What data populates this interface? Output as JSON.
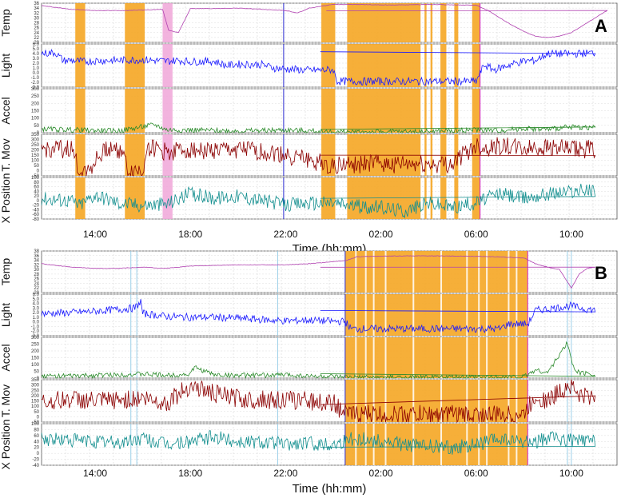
{
  "chart_data": [
    {
      "panel": "A",
      "type": "line",
      "x_ticks": [
        "14:00",
        "18:00",
        "22:00",
        "02:00",
        "06:00",
        "10:00"
      ],
      "xlabel": "Time (hh:mm)",
      "grid": true,
      "highlight_color": "#f5a623",
      "pink_color": "#f0a6d8",
      "shaded_orange": [
        [
          "13:10",
          "13:35"
        ],
        [
          "15:15",
          "16:05"
        ],
        [
          "23:30",
          "00:05"
        ],
        [
          "00:35",
          "03:40"
        ],
        [
          "03:50",
          "03:55"
        ],
        [
          "04:05",
          "04:10"
        ],
        [
          "04:30",
          "04:45"
        ],
        [
          "05:05",
          "05:15"
        ],
        [
          "05:50",
          "06:10"
        ]
      ],
      "shaded_pink": [
        [
          "16:50",
          "17:15"
        ]
      ],
      "vlines_blue": [
        "21:55"
      ],
      "vlines_magenta": [
        "06:10"
      ],
      "series": [
        {
          "name": "Temp",
          "color": "#b040b0",
          "ylim": [
            20,
            36
          ],
          "yticks": [
            "36",
            "34",
            "32",
            "30",
            "28",
            "26",
            "24",
            "22",
            "20"
          ],
          "x": [
            "11:45",
            "13:00",
            "14:00",
            "15:00",
            "16:00",
            "16:50",
            "17:05",
            "17:30",
            "18:00",
            "19:00",
            "20:00",
            "21:00",
            "22:00",
            "22:30",
            "23:00",
            "00:00",
            "01:00",
            "02:00",
            "03:00",
            "04:00",
            "05:00",
            "06:00",
            "06:30",
            "07:00",
            "07:30",
            "08:00",
            "08:30",
            "09:00",
            "09:30",
            "10:00",
            "10:30",
            "11:00",
            "11:30",
            "11:55"
          ],
          "y": [
            35,
            33.5,
            33,
            33,
            33.2,
            33.5,
            25,
            24,
            33.8,
            33.8,
            34,
            33.5,
            33,
            32,
            34,
            35.5,
            35.5,
            35.3,
            35.3,
            35.5,
            35.3,
            35.2,
            33,
            30,
            27,
            24.5,
            22.5,
            22,
            22.5,
            24,
            27,
            30,
            33,
            33
          ]
        },
        {
          "name": "Light",
          "color": "#1a1aff",
          "ylim": [
            -3,
            6
          ],
          "yticks": [
            "6.0",
            "5.0",
            "4.0",
            "3.0",
            "2.0",
            "1.0",
            "0.0",
            "-1.0",
            "-2.0",
            "-3.0"
          ],
          "x": [
            "11:45",
            "12:20",
            "12:40",
            "13:00",
            "13:30",
            "14:00",
            "15:00",
            "16:00",
            "17:00",
            "17:30",
            "18:00",
            "19:00",
            "19:30",
            "20:00",
            "21:00",
            "21:30",
            "22:00",
            "23:00",
            "00:00",
            "00:10",
            "01:00",
            "02:00",
            "03:00",
            "03:30",
            "04:00",
            "05:00",
            "06:00",
            "06:20",
            "06:45",
            "07:30",
            "08:00",
            "08:30",
            "09:00",
            "10:00",
            "11:00",
            "11:55"
          ],
          "y": [
            4,
            4.2,
            2.5,
            2.6,
            2.3,
            2.5,
            2.6,
            2.7,
            2.4,
            2.6,
            2.3,
            2.4,
            1.5,
            1.8,
            1.7,
            1,
            0.8,
            0.5,
            0.6,
            -1.8,
            -1.8,
            -1.8,
            -1.8,
            -1.8,
            -1.8,
            -1.8,
            -1.8,
            1.6,
            0.6,
            1.8,
            2.4,
            2.6,
            4,
            3.9,
            4.2,
            4.3
          ]
        },
        {
          "name": "Accel",
          "color": "#2a8a2a",
          "ylim": [
            0,
            300
          ],
          "yticks": [
            "300",
            "250",
            "200",
            "150",
            "100",
            "50",
            "0"
          ],
          "x": [
            "11:45",
            "13:00",
            "14:00",
            "15:00",
            "16:30",
            "17:00",
            "18:00",
            "20:00",
            "22:00",
            "00:00",
            "02:00",
            "04:00",
            "06:00",
            "07:00",
            "08:00",
            "09:00",
            "10:00",
            "11:00",
            "11:55"
          ],
          "y": [
            25,
            20,
            15,
            12,
            55,
            20,
            18,
            12,
            18,
            5,
            5,
            8,
            20,
            15,
            30,
            22,
            40,
            35,
            30
          ]
        },
        {
          "name": "T. Mov",
          "color": "#8b0000",
          "ylim": [
            -50,
            350
          ],
          "yticks": [
            "350",
            "300",
            "250",
            "200",
            "150",
            "100",
            "50",
            "0",
            "-50"
          ],
          "x": [
            "11:45",
            "13:00",
            "13:20",
            "13:40",
            "14:30",
            "15:10",
            "15:20",
            "16:00",
            "16:10",
            "17:00",
            "18:00",
            "19:00",
            "20:00",
            "21:00",
            "22:00",
            "23:00",
            "00:00",
            "01:00",
            "02:00",
            "03:00",
            "04:00",
            "05:00",
            "06:00",
            "06:20",
            "07:00",
            "08:00",
            "09:00",
            "10:00",
            "11:00",
            "11:55"
          ],
          "y": [
            200,
            210,
            0,
            0,
            220,
            200,
            0,
            0,
            230,
            180,
            210,
            190,
            200,
            180,
            150,
            100,
            50,
            60,
            70,
            60,
            60,
            70,
            250,
            220,
            240,
            210,
            230,
            200,
            210,
            220
          ]
        },
        {
          "name": "X Position",
          "color": "#138f8f",
          "ylim": [
            -80,
            100
          ],
          "yticks": [
            "100",
            "80",
            "60",
            "40",
            "20",
            "0",
            "-20",
            "-40",
            "-60",
            "-80"
          ],
          "x": [
            "11:45",
            "13:00",
            "13:20",
            "14:00",
            "15:00",
            "16:00",
            "17:00",
            "18:00",
            "19:00",
            "20:00",
            "21:00",
            "22:00",
            "23:00",
            "00:00",
            "01:00",
            "02:00",
            "03:00",
            "04:00",
            "05:00",
            "06:00",
            "07:00",
            "08:00",
            "09:00",
            "10:00",
            "11:00",
            "11:55"
          ],
          "y": [
            10,
            0,
            -20,
            25,
            -10,
            -20,
            -15,
            30,
            10,
            20,
            0,
            -20,
            -10,
            -10,
            -25,
            -30,
            -45,
            -10,
            -30,
            -10,
            30,
            10,
            30,
            40,
            45,
            30
          ]
        }
      ]
    },
    {
      "panel": "B",
      "type": "line",
      "x_ticks": [
        "14:00",
        "18:00",
        "22:00",
        "02:00",
        "06:00",
        "10:00"
      ],
      "xlabel": "Time (hh:mm)",
      "grid": true,
      "highlight_color": "#f5a623",
      "shaded_orange": [
        [
          "00:30",
          "08:10"
        ]
      ],
      "white_gaps": [
        "00:55",
        "01:20",
        "01:40",
        "02:10",
        "03:20",
        "04:30",
        "05:35",
        "06:05",
        "06:25",
        "07:20",
        "07:40"
      ],
      "vlines_lightblue": [
        "15:30",
        "15:45",
        "21:40",
        "09:50",
        "10:00"
      ],
      "vlines_blue": [
        "00:30"
      ],
      "vlines_magenta": [
        "08:10"
      ],
      "series": [
        {
          "name": "Temp",
          "color": "#b040b0",
          "ylim": [
            20,
            38
          ],
          "yticks": [
            "38",
            "36",
            "34",
            "32",
            "30",
            "28",
            "26",
            "24",
            "22",
            "20"
          ],
          "x": [
            "11:45",
            "13:00",
            "14:00",
            "15:00",
            "16:00",
            "17:00",
            "18:00",
            "20:00",
            "22:00",
            "23:00",
            "00:30",
            "01:00",
            "02:00",
            "04:00",
            "06:00",
            "07:00",
            "08:00",
            "08:30",
            "09:00",
            "09:30",
            "10:00",
            "10:20",
            "10:40",
            "11:00",
            "11:55"
          ],
          "y": [
            32.5,
            31,
            30.5,
            30.5,
            31,
            30.5,
            31.5,
            32,
            32,
            32.5,
            33.8,
            35.5,
            35.8,
            35.9,
            35.7,
            35.4,
            35,
            32.5,
            31,
            30,
            22,
            28,
            30.5,
            31,
            31
          ]
        },
        {
          "name": "Light",
          "color": "#1a1aff",
          "ylim": [
            -3,
            6
          ],
          "yticks": [
            "6.0",
            "5.0",
            "4.0",
            "3.0",
            "2.0",
            "1.0",
            "0.0",
            "-1.0",
            "-2.0",
            "-3.0"
          ],
          "x": [
            "11:45",
            "13:00",
            "14:00",
            "15:00",
            "15:40",
            "15:55",
            "16:00",
            "17:00",
            "18:00",
            "19:00",
            "20:00",
            "21:00",
            "22:00",
            "23:00",
            "00:00",
            "00:30",
            "00:45",
            "02:00",
            "04:00",
            "06:00",
            "07:00",
            "07:20",
            "07:40",
            "08:10",
            "08:30",
            "09:00",
            "10:00",
            "10:20",
            "11:00",
            "11:55"
          ],
          "y": [
            1.8,
            2,
            2.3,
            2.7,
            3,
            4.4,
            1.8,
            1.2,
            1,
            1,
            0.8,
            0.5,
            0.2,
            0.4,
            0.1,
            0.1,
            -1.5,
            -1.5,
            -1.5,
            -1.5,
            -1.5,
            -0.5,
            -0.4,
            -0.5,
            2.5,
            2.8,
            3.5,
            3,
            2.5,
            2.4
          ]
        },
        {
          "name": "Accel",
          "color": "#2a8a2a",
          "ylim": [
            0,
            300
          ],
          "yticks": [
            "300",
            "250",
            "200",
            "150",
            "100",
            "50",
            "0"
          ],
          "x": [
            "11:45",
            "13:00",
            "14:00",
            "15:00",
            "16:00",
            "17:00",
            "18:00",
            "18:10",
            "19:00",
            "20:00",
            "21:00",
            "22:00",
            "23:00",
            "00:30",
            "02:00",
            "04:00",
            "06:00",
            "08:00",
            "08:30",
            "09:00",
            "09:50",
            "10:05",
            "10:20",
            "11:00",
            "11:55"
          ],
          "y": [
            15,
            15,
            20,
            25,
            30,
            20,
            30,
            80,
            25,
            20,
            20,
            25,
            15,
            5,
            5,
            5,
            5,
            10,
            60,
            40,
            260,
            80,
            40,
            30,
            20
          ]
        },
        {
          "name": "T. Mov",
          "color": "#8b0000",
          "ylim": [
            -50,
            350
          ],
          "yticks": [
            "350",
            "300",
            "250",
            "200",
            "150",
            "100",
            "50",
            "0",
            "-50"
          ],
          "x": [
            "11:45",
            "13:00",
            "14:00",
            "15:00",
            "16:00",
            "17:00",
            "18:00",
            "19:00",
            "20:00",
            "21:00",
            "22:00",
            "23:00",
            "00:00",
            "00:30",
            "02:00",
            "04:00",
            "06:00",
            "08:00",
            "08:30",
            "09:00",
            "09:50",
            "10:00",
            "10:20",
            "11:00",
            "11:55"
          ],
          "y": [
            140,
            170,
            150,
            160,
            180,
            130,
            300,
            220,
            170,
            160,
            160,
            150,
            130,
            30,
            20,
            25,
            20,
            20,
            200,
            150,
            300,
            300,
            200,
            190,
            180
          ]
        },
        {
          "name": "X Position",
          "color": "#138f8f",
          "ylim": [
            -40,
            100
          ],
          "yticks": [
            "100",
            "80",
            "60",
            "40",
            "20",
            "0",
            "-20",
            "-40"
          ],
          "x": [
            "11:45",
            "13:00",
            "14:00",
            "15:00",
            "16:00",
            "17:00",
            "18:00",
            "19:00",
            "20:00",
            "21:00",
            "22:00",
            "23:00",
            "00:00",
            "00:30",
            "01:00",
            "02:00",
            "03:00",
            "04:00",
            "05:00",
            "06:00",
            "07:00",
            "07:30",
            "08:00",
            "08:30",
            "09:00",
            "10:00",
            "11:00",
            "11:55"
          ],
          "y": [
            50,
            45,
            40,
            35,
            50,
            30,
            40,
            55,
            40,
            40,
            30,
            35,
            30,
            45,
            50,
            40,
            30,
            25,
            20,
            30,
            50,
            40,
            35,
            40,
            50,
            45,
            40,
            45
          ]
        }
      ]
    }
  ]
}
